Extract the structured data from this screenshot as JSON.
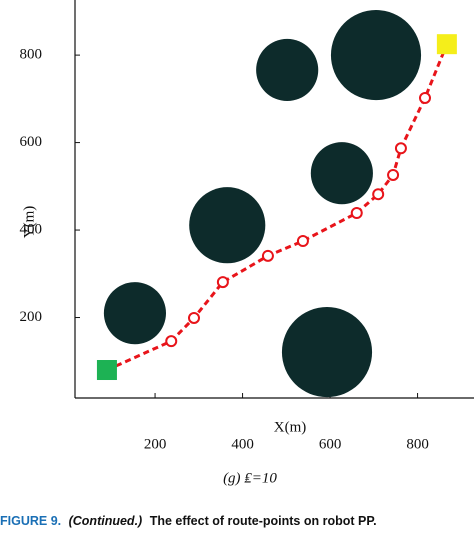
{
  "chart_data": {
    "type": "route",
    "xlabel": "X(m)",
    "ylabel": "Y(m)",
    "subtitle": "(g) ₤=10",
    "xlim": [
      17,
      929
    ],
    "ylim": [
      16,
      926
    ],
    "xticks": [
      200,
      400,
      600,
      800
    ],
    "yticks": [
      200,
      400,
      600,
      800
    ],
    "route": {
      "color": "#e8141a",
      "start_color": "#1db254",
      "goal_color": "#f5ee1a",
      "x": [
        90,
        237,
        289,
        355,
        458,
        538,
        661,
        710,
        744,
        762,
        817,
        867
      ],
      "y": [
        80,
        146,
        199,
        281,
        341,
        375,
        439,
        482,
        526,
        587,
        702,
        825
      ]
    },
    "obstacles": {
      "color": "#0d2b2b",
      "x": [
        154,
        365,
        502,
        627,
        705,
        593
      ],
      "y": [
        210,
        411,
        766,
        530,
        800,
        121
      ],
      "r": [
        71,
        87,
        71,
        71,
        103,
        103
      ]
    }
  },
  "figure_caption": {
    "label": "FIGURE 9.",
    "continued": "(Continued.)",
    "text": "The effect of route-points on robot PP."
  }
}
